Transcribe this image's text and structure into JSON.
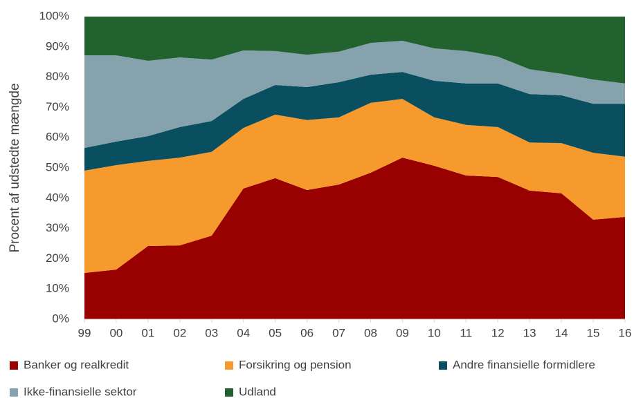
{
  "chart_data": {
    "type": "stacked-area",
    "ylabel": "Procent af udstedte mængde",
    "categories": [
      "99",
      "00",
      "01",
      "02",
      "03",
      "04",
      "05",
      "06",
      "07",
      "08",
      "09",
      "10",
      "11",
      "12",
      "13",
      "14",
      "15",
      "16"
    ],
    "series": [
      {
        "name": "Banker og realkredit",
        "color": "#990000",
        "values": [
          15.3,
          16.4,
          24.2,
          24.4,
          27.6,
          43.2,
          46.6,
          42.7,
          44.5,
          48.4,
          53.4,
          50.7,
          47.5,
          47.0,
          42.5,
          41.6,
          32.9,
          33.8
        ]
      },
      {
        "name": "Forsikring og pension",
        "color": "#f79a2e",
        "values": [
          33.8,
          34.5,
          28.1,
          29.0,
          27.7,
          20.0,
          21.0,
          23.1,
          22.2,
          23.1,
          19.4,
          16.0,
          16.7,
          16.5,
          15.9,
          16.6,
          22.1,
          19.9
        ]
      },
      {
        "name": "Andre finansielle formidlere",
        "color": "#0a4f5f",
        "values": [
          7.5,
          7.8,
          8.2,
          10.1,
          10.2,
          9.6,
          9.8,
          10.9,
          11.6,
          9.3,
          8.9,
          12.1,
          13.7,
          14.4,
          16.0,
          15.8,
          16.2,
          17.5
        ]
      },
      {
        "name": "Ikke-finansielle sektor",
        "color": "#85a2ad",
        "values": [
          30.6,
          28.5,
          24.9,
          23.0,
          20.3,
          16.0,
          11.2,
          10.7,
          10.1,
          10.5,
          10.3,
          10.7,
          10.7,
          8.9,
          8.2,
          7.1,
          8.0,
          6.7
        ]
      },
      {
        "name": "Udland",
        "color": "#22622e",
        "values": [
          12.8,
          12.8,
          14.6,
          13.5,
          14.2,
          11.2,
          11.4,
          12.6,
          11.6,
          8.7,
          8.0,
          10.5,
          11.4,
          13.2,
          17.4,
          18.9,
          20.8,
          22.1
        ]
      }
    ],
    "ylim": [
      0,
      100
    ],
    "yticks": [
      {
        "value": 0,
        "label": "0%"
      },
      {
        "value": 10,
        "label": "10%"
      },
      {
        "value": 20,
        "label": "20%"
      },
      {
        "value": 30,
        "label": "30%"
      },
      {
        "value": 40,
        "label": "40%"
      },
      {
        "value": 50,
        "label": "50%"
      },
      {
        "value": 60,
        "label": "60%"
      },
      {
        "value": 70,
        "label": "70%"
      },
      {
        "value": 80,
        "label": "80%"
      },
      {
        "value": 90,
        "label": "90%"
      },
      {
        "value": 100,
        "label": "100%"
      }
    ],
    "legend": "bottom"
  }
}
